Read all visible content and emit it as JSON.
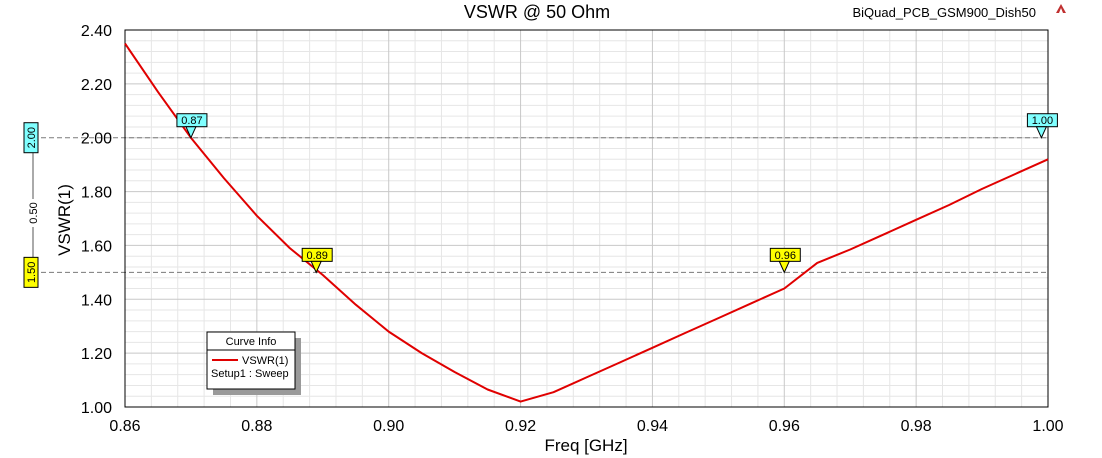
{
  "header": {
    "title": "VSWR @ 50 Ohm",
    "project": "BiQuad_PCB_GSM900_Dish50",
    "logo_icon": "ansys-logo-icon"
  },
  "chart_data": {
    "type": "line",
    "title": "VSWR @ 50 Ohm",
    "xlabel": "Freq [GHz]",
    "ylabel": "VSWR(1)",
    "xlim": [
      0.86,
      1.0
    ],
    "ylim": [
      1.0,
      2.4
    ],
    "xticks": [
      "0.86",
      "0.88",
      "0.90",
      "0.92",
      "0.94",
      "0.96",
      "0.98",
      "1.00"
    ],
    "yticks": [
      "1.00",
      "1.20",
      "1.40",
      "1.60",
      "1.80",
      "2.00",
      "2.20",
      "2.40"
    ],
    "grid": true,
    "series": [
      {
        "name": "VSWR(1)",
        "color": "#e00000",
        "x": [
          0.86,
          0.865,
          0.87,
          0.875,
          0.88,
          0.885,
          0.89,
          0.895,
          0.9,
          0.905,
          0.91,
          0.915,
          0.92,
          0.925,
          0.93,
          0.935,
          0.94,
          0.945,
          0.95,
          0.955,
          0.96,
          0.965,
          0.97,
          0.975,
          0.98,
          0.985,
          0.99,
          0.995,
          1.0
        ],
        "values": [
          2.35,
          2.17,
          2.0,
          1.85,
          1.71,
          1.59,
          1.49,
          1.38,
          1.28,
          1.2,
          1.13,
          1.065,
          1.02,
          1.055,
          1.11,
          1.165,
          1.22,
          1.275,
          1.33,
          1.385,
          1.44,
          1.535,
          1.585,
          1.64,
          1.695,
          1.75,
          1.81,
          1.865,
          1.92
        ]
      }
    ],
    "markers": [
      {
        "label": "0.87",
        "x": 0.87,
        "y": 2.0,
        "color": "#80ffff"
      },
      {
        "label": "0.89",
        "x": 0.889,
        "y": 1.5,
        "color": "#ffff00"
      },
      {
        "label": "0.96",
        "x": 0.96,
        "y": 1.5,
        "color": "#ffff00"
      },
      {
        "label": "1.00",
        "x": 0.999,
        "y": 2.0,
        "color": "#80ffff"
      }
    ],
    "reference_lines": [
      {
        "label": "2.00",
        "y": 2.0,
        "color": "#80ffff"
      },
      {
        "label": "1.50",
        "y": 1.5,
        "color": "#ffff00"
      }
    ],
    "delta_label": "0.50",
    "legend": {
      "title": "Curve Info",
      "entries": [
        "VSWR(1)"
      ],
      "subtitle": "Setup1 : Sweep",
      "placement": "bottom-left"
    }
  }
}
